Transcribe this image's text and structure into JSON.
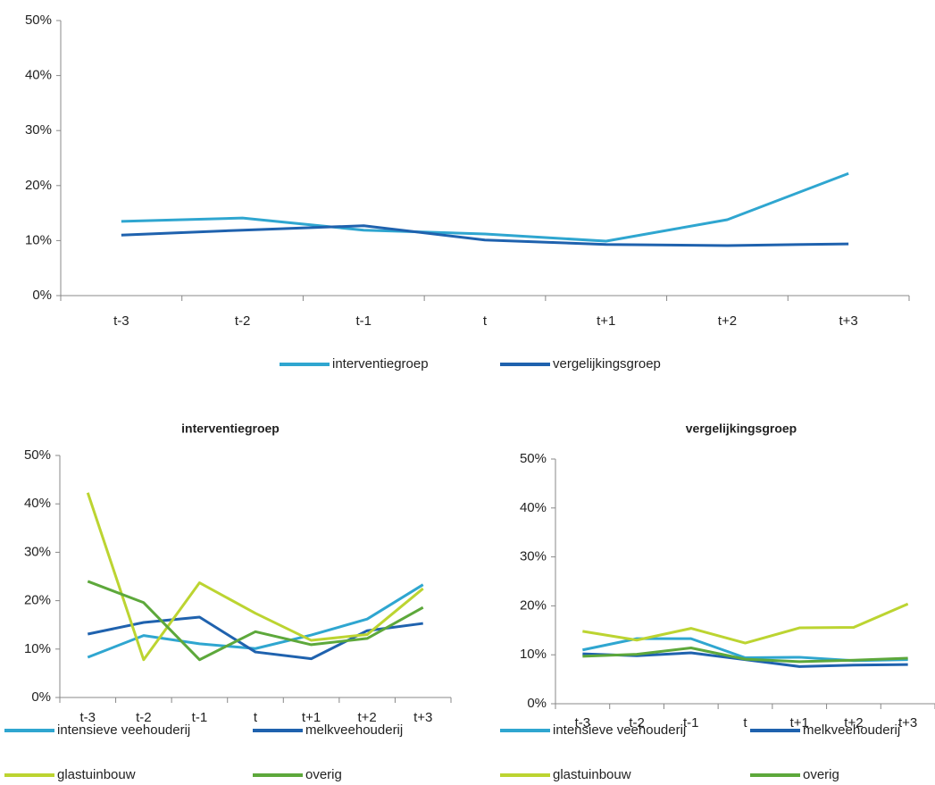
{
  "chart_data": [
    {
      "type": "line",
      "categories": [
        "t-3",
        "t-2",
        "t-1",
        "t",
        "t+1",
        "t+2",
        "t+3"
      ],
      "series": [
        {
          "name": "interventiegroep",
          "color": "#2fa6d0",
          "values": [
            13.5,
            14.1,
            11.9,
            11.2,
            9.9,
            13.8,
            22.2
          ]
        },
        {
          "name": "vergelijkingsgroep",
          "color": "#1f62ae",
          "values": [
            11.0,
            11.9,
            12.7,
            10.1,
            9.3,
            9.1,
            9.4
          ]
        }
      ],
      "ylim": [
        0,
        50
      ],
      "yticks": [
        {
          "value": 0,
          "label": "0%"
        },
        {
          "value": 10,
          "label": "10%"
        },
        {
          "value": 20,
          "label": "20%"
        },
        {
          "value": 30,
          "label": "30%"
        },
        {
          "value": 40,
          "label": "40%"
        },
        {
          "value": 50,
          "label": "50%"
        }
      ]
    },
    {
      "type": "line",
      "title": "interventiegroep",
      "categories": [
        "t-3",
        "t-2",
        "t-1",
        "t",
        "t+1",
        "t+2",
        "t+3"
      ],
      "series": [
        {
          "name": "intensieve veehouderij",
          "color": "#2fa6d0",
          "values": [
            8.3,
            12.8,
            11.1,
            10.1,
            12.9,
            16.2,
            23.3
          ]
        },
        {
          "name": "melkveehouderij",
          "color": "#1f62ae",
          "values": [
            13.1,
            15.5,
            16.6,
            9.4,
            8.0,
            13.8,
            15.3
          ]
        },
        {
          "name": "glastuinbouw",
          "color": "#bcd431",
          "values": [
            42.3,
            7.8,
            23.7,
            17.4,
            11.8,
            13.0,
            22.5
          ]
        },
        {
          "name": "overig",
          "color": "#5da83b",
          "values": [
            24.0,
            19.6,
            7.8,
            13.6,
            10.9,
            12.2,
            18.6
          ]
        }
      ],
      "ylim": [
        0,
        50
      ],
      "yticks": [
        {
          "value": 0,
          "label": "0%"
        },
        {
          "value": 10,
          "label": "10%"
        },
        {
          "value": 20,
          "label": "20%"
        },
        {
          "value": 30,
          "label": "30%"
        },
        {
          "value": 40,
          "label": "40%"
        },
        {
          "value": 50,
          "label": "50%"
        }
      ]
    },
    {
      "type": "line",
      "title": "vergelijkingsgroep",
      "categories": [
        "t-3",
        "t-2",
        "t-1",
        "t",
        "t+1",
        "t+2",
        "t+3"
      ],
      "series": [
        {
          "name": "intensieve veehouderij",
          "color": "#2fa6d0",
          "values": [
            11.0,
            13.3,
            13.3,
            9.4,
            9.5,
            8.8,
            9.0
          ]
        },
        {
          "name": "melkveehouderij",
          "color": "#1f62ae",
          "values": [
            10.2,
            9.8,
            10.4,
            9.0,
            7.6,
            7.9,
            8.0
          ]
        },
        {
          "name": "glastuinbouw",
          "color": "#bcd431",
          "values": [
            14.8,
            13.0,
            15.4,
            12.4,
            15.5,
            15.6,
            20.4
          ]
        },
        {
          "name": "overig",
          "color": "#5da83b",
          "values": [
            9.7,
            10.1,
            11.4,
            9.1,
            8.6,
            8.9,
            9.3
          ]
        }
      ],
      "ylim": [
        0,
        50
      ],
      "yticks": [
        {
          "value": 0,
          "label": "0%"
        },
        {
          "value": 10,
          "label": "10%"
        },
        {
          "value": 20,
          "label": "20%"
        },
        {
          "value": 30,
          "label": "30%"
        },
        {
          "value": 40,
          "label": "40%"
        },
        {
          "value": 50,
          "label": "50%"
        }
      ]
    }
  ]
}
